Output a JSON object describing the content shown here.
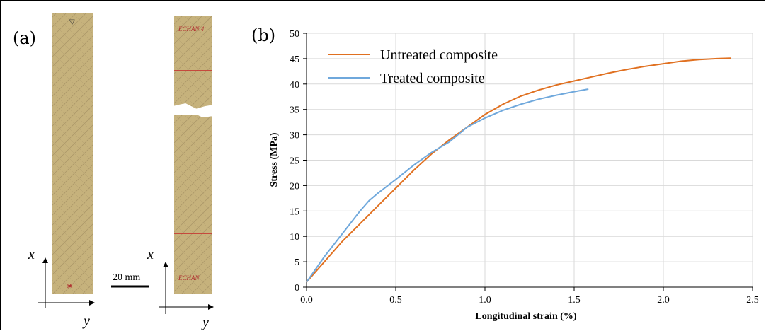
{
  "panel_a": {
    "label": "(a)",
    "scale_bar_label": "20 mm",
    "axis_x_label": "x⃗",
    "axis_y_label": "y⃗"
  },
  "panel_b": {
    "label": "(b)"
  },
  "colors": {
    "untreated": "#e07020",
    "treated": "#6fa8dc",
    "specimen": "#c9b47e",
    "grid": "#d9d9d9"
  },
  "chart_data": {
    "type": "line",
    "title": "",
    "xlabel": "Longitudinal strain (%)",
    "ylabel": "Stress (MPa)",
    "xlim": [
      0.0,
      2.5
    ],
    "ylim": [
      0,
      50
    ],
    "x_ticks": [
      "0.0",
      "0.5",
      "1.0",
      "1.5",
      "2.0",
      "2.5"
    ],
    "y_ticks": [
      "0",
      "5",
      "10",
      "15",
      "20",
      "25",
      "30",
      "35",
      "40",
      "45",
      "50"
    ],
    "grid": true,
    "legend_position": "top-left",
    "series": [
      {
        "name": "Untreated composite",
        "color": "#e07020",
        "points": [
          [
            0.0,
            1
          ],
          [
            0.1,
            5
          ],
          [
            0.2,
            9
          ],
          [
            0.3,
            12.5
          ],
          [
            0.4,
            16
          ],
          [
            0.5,
            19.5
          ],
          [
            0.6,
            23
          ],
          [
            0.7,
            26.2
          ],
          [
            0.8,
            29
          ],
          [
            0.9,
            31.5
          ],
          [
            1.0,
            34
          ],
          [
            1.1,
            36
          ],
          [
            1.2,
            37.6
          ],
          [
            1.3,
            38.8
          ],
          [
            1.4,
            39.8
          ],
          [
            1.5,
            40.6
          ],
          [
            1.6,
            41.4
          ],
          [
            1.7,
            42.2
          ],
          [
            1.8,
            42.9
          ],
          [
            1.9,
            43.5
          ],
          [
            2.0,
            44.0
          ],
          [
            2.1,
            44.5
          ],
          [
            2.2,
            44.8
          ],
          [
            2.3,
            45.0
          ],
          [
            2.38,
            45.1
          ]
        ]
      },
      {
        "name": "Treated composite",
        "color": "#6fa8dc",
        "points": [
          [
            0.0,
            1
          ],
          [
            0.1,
            6
          ],
          [
            0.2,
            10.5
          ],
          [
            0.3,
            15
          ],
          [
            0.35,
            17
          ],
          [
            0.4,
            18.5
          ],
          [
            0.5,
            21.2
          ],
          [
            0.6,
            24
          ],
          [
            0.7,
            26.5
          ],
          [
            0.8,
            28.6
          ],
          [
            0.9,
            31.5
          ],
          [
            1.0,
            33.3
          ],
          [
            1.1,
            34.8
          ],
          [
            1.2,
            36.0
          ],
          [
            1.3,
            37.0
          ],
          [
            1.4,
            37.8
          ],
          [
            1.5,
            38.5
          ],
          [
            1.58,
            39.0
          ]
        ]
      }
    ]
  }
}
